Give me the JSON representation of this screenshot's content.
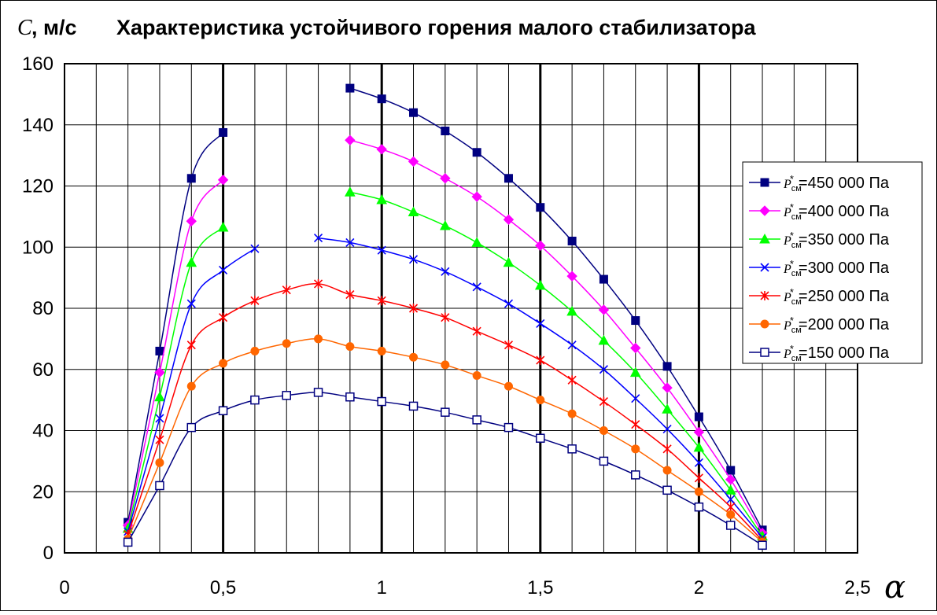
{
  "chart_data": {
    "type": "line",
    "title": "Характеристика устойчивого горения малого стабилизатора",
    "ylabel_symbol": "C",
    "ylabel_unit": ", м/с",
    "xlabel": "α",
    "xlim": [
      0,
      2.5
    ],
    "ylim": [
      0,
      160
    ],
    "x_ticks": [
      0,
      0.5,
      1,
      1.5,
      2,
      2.5
    ],
    "x_tick_labels": [
      "0",
      "0,5",
      "1",
      "1,5",
      "2",
      "2,5"
    ],
    "y_ticks": [
      0,
      20,
      40,
      60,
      80,
      100,
      120,
      140,
      160
    ],
    "y_tick_labels": [
      "0",
      "20",
      "40",
      "60",
      "80",
      "100",
      "120",
      "140",
      "160"
    ],
    "grid": true,
    "legend_position": "right",
    "legend_symbol": "P",
    "legend_sub": "см",
    "legend_sup": "*",
    "series": [
      {
        "name": "=450 000 Па",
        "color": "#000080",
        "marker": "square-filled",
        "segments": [
          {
            "x": [
              0.2,
              0.3,
              0.4,
              0.5
            ],
            "y": [
              10,
              66,
              122.5,
              137.5
            ]
          },
          {
            "x": [
              0.9,
              1.0,
              1.1,
              1.2,
              1.3,
              1.4,
              1.5,
              1.6,
              1.7,
              1.8,
              1.9,
              2.0,
              2.1,
              2.2
            ],
            "y": [
              152,
              148.5,
              144,
              138,
              131,
              122.5,
              113,
              102,
              89.5,
              76,
              61,
              44.5,
              27,
              7.5
            ]
          }
        ]
      },
      {
        "name": "=400 000 Па",
        "color": "#ff00ff",
        "marker": "diamond-filled",
        "segments": [
          {
            "x": [
              0.2,
              0.3,
              0.4,
              0.5
            ],
            "y": [
              9,
              59,
              108.5,
              122
            ]
          },
          {
            "x": [
              0.9,
              1.0,
              1.1,
              1.2,
              1.3,
              1.4,
              1.5,
              1.6,
              1.7,
              1.8,
              1.9,
              2.0,
              2.1,
              2.2
            ],
            "y": [
              135,
              132,
              128,
              122.5,
              116.5,
              109,
              100.5,
              90.5,
              79.5,
              67,
              54,
              39.5,
              24,
              6.5
            ]
          }
        ]
      },
      {
        "name": "=350 000 Па",
        "color": "#00ff00",
        "marker": "triangle-filled",
        "segments": [
          {
            "x": [
              0.2,
              0.3,
              0.4,
              0.5
            ],
            "y": [
              8,
              51,
              95,
              106.5
            ]
          },
          {
            "x": [
              0.9,
              1.0,
              1.1,
              1.2,
              1.3,
              1.4,
              1.5,
              1.6,
              1.7,
              1.8,
              1.9,
              2.0,
              2.1,
              2.2
            ],
            "y": [
              118,
              115.5,
              111.5,
              107,
              101.5,
              95,
              87.5,
              79,
              69.5,
              59,
              47,
              34.5,
              20.5,
              5.5
            ]
          }
        ]
      },
      {
        "name": "=300 000 Па",
        "color": "#0000ff",
        "marker": "x",
        "segments": [
          {
            "x": [
              0.2,
              0.3,
              0.4,
              0.5,
              0.6
            ],
            "y": [
              7,
              44,
              81.5,
              92.5,
              99.5
            ]
          },
          {
            "x": [
              0.8,
              0.9,
              1.0,
              1.1,
              1.2,
              1.3,
              1.4,
              1.5,
              1.6,
              1.7,
              1.8,
              1.9,
              2.0,
              2.1,
              2.2
            ],
            "y": [
              103,
              101.5,
              99,
              96,
              92,
              87,
              81.5,
              75,
              68,
              60,
              50.5,
              40.5,
              29.5,
              17.5,
              5
            ]
          }
        ]
      },
      {
        "name": "=250 000 Па",
        "color": "#ff0000",
        "marker": "star",
        "segments": [
          {
            "x": [
              0.2,
              0.3,
              0.4,
              0.5,
              0.6,
              0.7,
              0.8,
              0.9,
              1.0,
              1.1,
              1.2,
              1.3,
              1.4,
              1.5,
              1.6,
              1.7,
              1.8,
              1.9,
              2.0,
              2.1,
              2.2
            ],
            "y": [
              6,
              37,
              68,
              77,
              82.5,
              86,
              88,
              84.5,
              82.5,
              80,
              77,
              72.5,
              68,
              63,
              56.5,
              49.5,
              42,
              34,
              24.5,
              15,
              4
            ]
          }
        ]
      },
      {
        "name": "=200 000 Па",
        "color": "#ff6600",
        "marker": "circle-filled",
        "segments": [
          {
            "x": [
              0.2,
              0.3,
              0.4,
              0.5,
              0.6,
              0.7,
              0.8,
              0.9,
              1.0,
              1.1,
              1.2,
              1.3,
              1.4,
              1.5,
              1.6,
              1.7,
              1.8,
              1.9,
              2.0,
              2.1,
              2.2
            ],
            "y": [
              4.5,
              29.5,
              54.5,
              62,
              66,
              68.5,
              70,
              67.5,
              66,
              64,
              61.5,
              58,
              54.5,
              50,
              45.5,
              40,
              34,
              27,
              20,
              12.5,
              3.5
            ]
          }
        ]
      },
      {
        "name": "=150 000 Па",
        "color": "#000080",
        "marker": "square-open",
        "segments": [
          {
            "x": [
              0.2,
              0.3,
              0.4,
              0.5,
              0.6,
              0.7,
              0.8,
              0.9,
              1.0,
              1.1,
              1.2,
              1.3,
              1.4,
              1.5,
              1.6,
              1.7,
              1.8,
              1.9,
              2.0,
              2.1,
              2.2
            ],
            "y": [
              3.5,
              22,
              41,
              46.5,
              50,
              51.5,
              52.5,
              51,
              49.5,
              48,
              46,
              43.5,
              41,
              37.5,
              34,
              30,
              25.5,
              20.5,
              15,
              9,
              2.5
            ]
          }
        ]
      }
    ]
  }
}
